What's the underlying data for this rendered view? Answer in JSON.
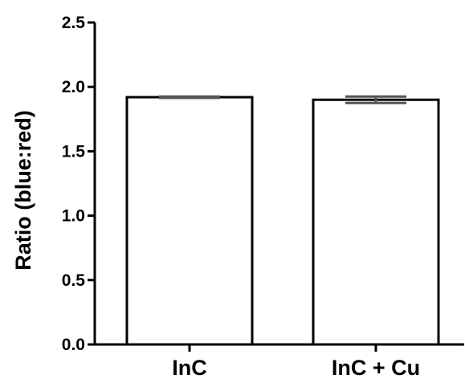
{
  "chart_data": {
    "type": "bar",
    "title": "",
    "xlabel": "",
    "ylabel": "Ratio (blue:red)",
    "categories": [
      "InC",
      "InC + Cu"
    ],
    "values": [
      1.92,
      1.9
    ],
    "errors": [
      0.005,
      0.025
    ],
    "ylim": [
      0,
      2.5
    ],
    "yticks": [
      0.0,
      0.5,
      1.0,
      1.5,
      2.0,
      2.5
    ],
    "ytick_labels": [
      "0.0",
      "0.5",
      "1.0",
      "1.5",
      "2.0",
      "2.5"
    ],
    "grid": false,
    "legend": "none",
    "bar_fill": "#ffffff",
    "bar_stroke": "#000000",
    "error_color": "#555555"
  }
}
